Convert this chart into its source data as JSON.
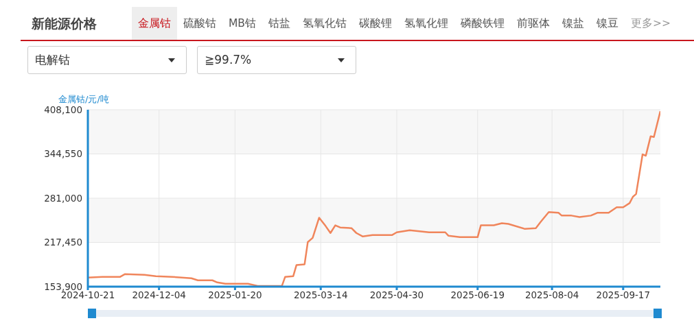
{
  "chart_data": {
    "type": "line",
    "title": "新能源价格",
    "ylabel": "金属钴/元/吨",
    "annotations": [
      "金属钴",
      "硫酸钴",
      "MB钴",
      "钴盐",
      "氢氧化钴",
      "碳酸锂",
      "氢氧化锂",
      "磷酸铁锂",
      "前驱体",
      "镍盐",
      "镍豆",
      "更多>>",
      "电解钴",
      "≧99.7%"
    ],
    "x": [
      "2024-10-21",
      "2024-10-30",
      "2024-11-10",
      "2024-11-13",
      "2024-11-25",
      "2024-12-02",
      "2024-12-12",
      "2024-12-24",
      "2024-12-28",
      "2025-01-06",
      "2025-01-09",
      "2025-01-14",
      "2025-01-28",
      "2025-02-03",
      "2025-02-18",
      "2025-02-20",
      "2025-02-25",
      "2025-02-27",
      "2025-03-04",
      "2025-03-06",
      "2025-03-09",
      "2025-03-13",
      "2025-03-17",
      "2025-03-20",
      "2025-03-23",
      "2025-03-26",
      "2025-04-02",
      "2025-04-05",
      "2025-04-09",
      "2025-04-15",
      "2025-04-27",
      "2025-04-30",
      "2025-05-08",
      "2025-05-20",
      "2025-05-30",
      "2025-06-01",
      "2025-06-08",
      "2025-06-19",
      "2025-06-21",
      "2025-06-29",
      "2025-07-04",
      "2025-07-08",
      "2025-07-18",
      "2025-07-25",
      "2025-07-28",
      "2025-08-02",
      "2025-08-08",
      "2025-08-10",
      "2025-08-16",
      "2025-08-21",
      "2025-08-28",
      "2025-09-01",
      "2025-09-08",
      "2025-09-13",
      "2025-09-17",
      "2025-09-21",
      "2025-09-23",
      "2025-09-25",
      "2025-09-29",
      "2025-10-01",
      "2025-10-04",
      "2025-10-06",
      "2025-10-10"
    ],
    "series": [
      {
        "color": "#f0855b",
        "values": [
          167000,
          168000,
          168000,
          172000,
          171000,
          169000,
          168000,
          166000,
          163000,
          163000,
          160000,
          158000,
          158000,
          155000,
          155000,
          168000,
          169000,
          185000,
          186000,
          218000,
          224000,
          253000,
          241000,
          231000,
          242000,
          239000,
          238000,
          231000,
          226000,
          228000,
          228000,
          232000,
          235000,
          232000,
          232000,
          227000,
          225000,
          225000,
          242000,
          242000,
          245000,
          244000,
          237000,
          238000,
          247000,
          261000,
          260000,
          256000,
          256000,
          254000,
          256000,
          260000,
          260000,
          268000,
          268000,
          274000,
          283000,
          287000,
          344000,
          342000,
          370000,
          369000,
          406000
        ]
      }
    ],
    "xlim": [
      "2024-10-21",
      "2025-10-10"
    ],
    "xticks": [
      "2024-10-21",
      "2024-12-04",
      "2025-01-20",
      "2025-03-14",
      "2025-04-30",
      "2025-06-19",
      "2025-08-04",
      "2025-09-17"
    ],
    "ylim": [
      153900,
      408100
    ],
    "yticks": [
      {
        "value": 153900,
        "label": "153,900"
      },
      {
        "value": 217450,
        "label": "217,450"
      },
      {
        "value": 281000,
        "label": "281,000"
      },
      {
        "value": 344550,
        "label": "344,550"
      },
      {
        "value": 408100,
        "label": "408,100"
      }
    ],
    "grid": true,
    "marker": "none",
    "line_style": "solid"
  }
}
